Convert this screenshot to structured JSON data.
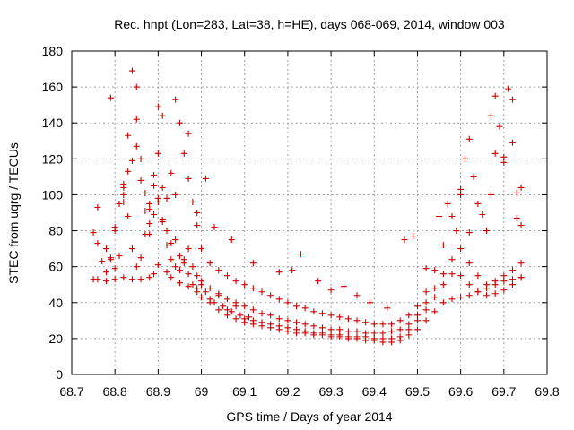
{
  "chart_data": {
    "type": "scatter",
    "title": "Rec. hnpt (Lon=283, Lat=38, h=HE), days 068-069, 2014, window 003",
    "xlabel": "GPS time / Days of year 2014",
    "ylabel": "STEC from uqrg / TECUs",
    "xlim": [
      68.7,
      69.8
    ],
    "ylim": [
      0,
      180
    ],
    "xticks": [
      "68.7",
      "68.8",
      "68.9",
      "69",
      "69.1",
      "69.2",
      "69.3",
      "69.4",
      "69.5",
      "69.6",
      "69.7",
      "69.8"
    ],
    "yticks": [
      "0",
      "20",
      "40",
      "60",
      "80",
      "100",
      "120",
      "140",
      "160",
      "180"
    ],
    "grid": true,
    "marker": "plus",
    "marker_color": "#cc0000",
    "series": [
      {
        "name": "STEC",
        "points": [
          [
            68.75,
            53
          ],
          [
            68.76,
            53
          ],
          [
            68.78,
            52
          ],
          [
            68.8,
            53
          ],
          [
            68.82,
            54
          ],
          [
            68.84,
            53
          ],
          [
            68.86,
            53
          ],
          [
            68.88,
            54
          ],
          [
            68.89,
            56
          ],
          [
            68.9,
            61
          ],
          [
            68.92,
            57
          ],
          [
            68.93,
            54
          ],
          [
            68.95,
            51
          ],
          [
            68.97,
            49
          ],
          [
            68.99,
            46
          ],
          [
            69.0,
            43
          ],
          [
            69.02,
            40
          ],
          [
            69.04,
            36
          ],
          [
            69.06,
            33
          ],
          [
            69.08,
            31
          ],
          [
            69.1,
            29
          ],
          [
            69.12,
            28
          ],
          [
            69.14,
            27
          ],
          [
            69.16,
            26
          ],
          [
            69.18,
            25
          ],
          [
            69.2,
            24
          ],
          [
            69.22,
            23
          ],
          [
            69.24,
            23
          ],
          [
            69.26,
            22
          ],
          [
            69.28,
            22
          ],
          [
            69.3,
            21
          ],
          [
            69.32,
            21
          ],
          [
            69.34,
            20
          ],
          [
            69.36,
            20
          ],
          [
            69.38,
            19
          ],
          [
            69.4,
            19
          ],
          [
            69.42,
            18
          ],
          [
            69.44,
            18
          ],
          [
            69.46,
            19
          ],
          [
            69.48,
            22
          ],
          [
            69.5,
            25
          ],
          [
            69.52,
            30
          ],
          [
            69.54,
            35
          ],
          [
            69.56,
            40
          ],
          [
            69.58,
            42
          ],
          [
            69.6,
            43
          ],
          [
            69.62,
            44
          ],
          [
            69.64,
            46
          ],
          [
            69.66,
            48
          ],
          [
            69.68,
            50
          ],
          [
            69.7,
            52
          ],
          [
            69.72,
            53
          ],
          [
            69.74,
            54
          ],
          [
            68.75,
            79
          ],
          [
            68.76,
            73
          ],
          [
            68.77,
            63
          ],
          [
            68.78,
            57
          ],
          [
            68.79,
            65
          ],
          [
            68.8,
            80
          ],
          [
            68.81,
            95
          ],
          [
            68.82,
            100
          ],
          [
            68.83,
            88
          ],
          [
            68.84,
            70
          ],
          [
            68.85,
            60
          ],
          [
            68.86,
            65
          ],
          [
            68.87,
            78
          ],
          [
            68.88,
            92
          ],
          [
            68.89,
            105
          ],
          [
            68.9,
            98
          ],
          [
            68.91,
            85
          ],
          [
            68.92,
            72
          ],
          [
            68.93,
            64
          ],
          [
            68.94,
            60
          ],
          [
            68.95,
            58
          ],
          [
            68.96,
            62
          ],
          [
            68.97,
            56
          ],
          [
            68.98,
            50
          ],
          [
            68.99,
            48
          ],
          [
            69.0,
            52
          ],
          [
            69.01,
            46
          ],
          [
            69.02,
            42
          ],
          [
            69.03,
            40
          ],
          [
            69.04,
            44
          ],
          [
            69.05,
            38
          ],
          [
            69.06,
            36
          ],
          [
            69.07,
            35
          ],
          [
            69.08,
            38
          ],
          [
            69.09,
            33
          ],
          [
            69.1,
            31
          ],
          [
            69.11,
            32
          ],
          [
            69.12,
            30
          ],
          [
            69.14,
            29
          ],
          [
            69.16,
            28
          ],
          [
            69.18,
            27
          ],
          [
            69.2,
            26
          ],
          [
            69.22,
            25
          ],
          [
            69.24,
            24
          ],
          [
            69.26,
            23
          ],
          [
            69.28,
            23
          ],
          [
            69.3,
            22
          ],
          [
            69.32,
            22
          ],
          [
            69.34,
            21
          ],
          [
            69.36,
            21
          ],
          [
            69.38,
            21
          ],
          [
            69.4,
            20
          ],
          [
            69.42,
            20
          ],
          [
            69.44,
            20
          ],
          [
            69.46,
            21
          ],
          [
            69.48,
            25
          ],
          [
            69.5,
            30
          ],
          [
            69.52,
            36
          ],
          [
            69.54,
            43
          ],
          [
            69.56,
            50
          ],
          [
            69.58,
            56
          ],
          [
            69.6,
            55
          ],
          [
            69.62,
            50
          ],
          [
            69.64,
            46
          ],
          [
            69.66,
            44
          ],
          [
            69.68,
            45
          ],
          [
            69.7,
            47
          ],
          [
            69.72,
            50
          ],
          [
            69.74,
            54
          ],
          [
            68.76,
            93
          ],
          [
            68.78,
            70
          ],
          [
            68.79,
            64
          ],
          [
            68.8,
            59
          ],
          [
            68.81,
            66
          ],
          [
            68.82,
            96
          ],
          [
            68.83,
            113
          ],
          [
            68.84,
            119
          ],
          [
            68.85,
            127
          ],
          [
            68.86,
            108
          ],
          [
            68.87,
            91
          ],
          [
            68.88,
            84
          ],
          [
            68.89,
            89
          ],
          [
            68.9,
            96
          ],
          [
            68.91,
            86
          ],
          [
            68.92,
            80
          ],
          [
            68.93,
            73
          ],
          [
            68.94,
            75
          ],
          [
            68.95,
            66
          ],
          [
            68.96,
            64
          ],
          [
            68.97,
            70
          ],
          [
            68.98,
            60
          ],
          [
            68.99,
            55
          ],
          [
            69.0,
            50
          ],
          [
            69.02,
            48
          ],
          [
            69.04,
            45
          ],
          [
            69.06,
            42
          ],
          [
            69.08,
            40
          ],
          [
            69.1,
            38
          ],
          [
            69.12,
            36
          ],
          [
            69.14,
            34
          ],
          [
            69.16,
            33
          ],
          [
            69.18,
            31
          ],
          [
            69.2,
            30
          ],
          [
            69.22,
            29
          ],
          [
            69.24,
            28
          ],
          [
            69.26,
            27
          ],
          [
            69.28,
            26
          ],
          [
            69.3,
            25
          ],
          [
            69.32,
            25
          ],
          [
            69.34,
            24
          ],
          [
            69.36,
            24
          ],
          [
            69.38,
            23
          ],
          [
            69.4,
            23
          ],
          [
            69.42,
            23
          ],
          [
            69.44,
            24
          ],
          [
            69.46,
            25
          ],
          [
            69.48,
            28
          ],
          [
            69.5,
            33
          ],
          [
            69.52,
            40
          ],
          [
            69.54,
            48
          ],
          [
            69.56,
            56
          ],
          [
            69.58,
            64
          ],
          [
            69.6,
            70
          ],
          [
            69.62,
            62
          ],
          [
            69.64,
            55
          ],
          [
            69.66,
            50
          ],
          [
            69.68,
            52
          ],
          [
            69.7,
            55
          ],
          [
            69.72,
            58
          ],
          [
            69.74,
            62
          ],
          [
            68.82,
            104
          ],
          [
            68.83,
            133
          ],
          [
            68.84,
            169
          ],
          [
            68.85,
            142
          ],
          [
            68.86,
            120
          ],
          [
            68.87,
            101
          ],
          [
            68.88,
            95
          ],
          [
            68.89,
            111
          ],
          [
            68.9,
            123
          ],
          [
            68.91,
            104
          ],
          [
            68.92,
            98
          ],
          [
            68.93,
            112
          ],
          [
            68.94,
            153
          ],
          [
            68.95,
            140
          ],
          [
            68.96,
            123
          ],
          [
            68.97,
            109
          ],
          [
            68.98,
            96
          ],
          [
            68.99,
            83
          ],
          [
            69.0,
            70
          ],
          [
            69.02,
            62
          ],
          [
            69.04,
            58
          ],
          [
            69.06,
            55
          ],
          [
            69.08,
            52
          ],
          [
            69.1,
            50
          ],
          [
            69.12,
            48
          ],
          [
            69.14,
            46
          ],
          [
            69.16,
            44
          ],
          [
            69.18,
            42
          ],
          [
            69.2,
            40
          ],
          [
            69.22,
            38
          ],
          [
            69.24,
            37
          ],
          [
            69.26,
            35
          ],
          [
            69.28,
            34
          ],
          [
            69.3,
            33
          ],
          [
            69.32,
            32
          ],
          [
            69.34,
            31
          ],
          [
            69.36,
            30
          ],
          [
            69.38,
            29
          ],
          [
            69.4,
            28
          ],
          [
            69.42,
            28
          ],
          [
            69.44,
            28
          ],
          [
            69.46,
            30
          ],
          [
            69.48,
            33
          ],
          [
            69.5,
            38
          ],
          [
            69.52,
            46
          ],
          [
            69.54,
            58
          ],
          [
            69.56,
            72
          ],
          [
            69.58,
            88
          ],
          [
            69.6,
            100
          ],
          [
            69.61,
            120
          ],
          [
            69.62,
            131
          ],
          [
            69.63,
            110
          ],
          [
            69.64,
            95
          ],
          [
            69.66,
            80
          ],
          [
            69.67,
            100
          ],
          [
            69.68,
            123
          ],
          [
            69.69,
            138
          ],
          [
            69.7,
            121
          ],
          [
            69.71,
            159
          ],
          [
            69.72,
            129
          ],
          [
            69.73,
            101
          ],
          [
            69.74,
            83
          ],
          [
            68.79,
            154
          ],
          [
            68.8,
            82
          ],
          [
            68.82,
            106
          ],
          [
            68.85,
            160
          ],
          [
            68.88,
            78
          ],
          [
            68.9,
            149
          ],
          [
            68.91,
            144
          ],
          [
            68.94,
            100
          ],
          [
            68.97,
            134
          ],
          [
            68.99,
            90
          ],
          [
            69.01,
            109
          ],
          [
            69.03,
            82
          ],
          [
            69.07,
            75
          ],
          [
            69.12,
            62
          ],
          [
            69.18,
            57
          ],
          [
            69.21,
            58
          ],
          [
            69.23,
            67
          ],
          [
            69.27,
            52
          ],
          [
            69.3,
            47
          ],
          [
            69.33,
            49
          ],
          [
            69.36,
            44
          ],
          [
            69.39,
            40
          ],
          [
            69.43,
            37
          ],
          [
            69.47,
            75
          ],
          [
            69.49,
            77
          ],
          [
            69.52,
            59
          ],
          [
            69.55,
            88
          ],
          [
            69.57,
            95
          ],
          [
            69.59,
            80
          ],
          [
            69.6,
            103
          ],
          [
            69.62,
            79
          ],
          [
            69.65,
            89
          ],
          [
            69.67,
            144
          ],
          [
            69.68,
            155
          ],
          [
            69.7,
            118
          ],
          [
            69.72,
            153
          ],
          [
            69.73,
            87
          ],
          [
            69.74,
            104
          ]
        ]
      }
    ]
  }
}
